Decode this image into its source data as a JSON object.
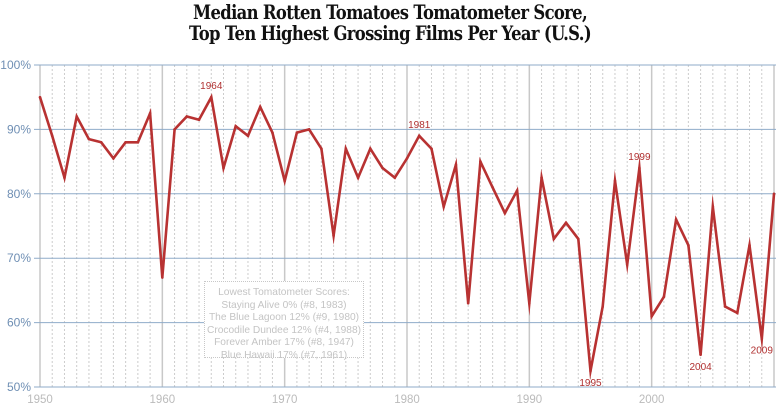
{
  "chart_data": {
    "type": "line",
    "title": "Median Rotten Tomatoes Tomatometer Score,",
    "subtitle": "Top Ten Highest Grossing Films Per Year (U.S.)",
    "xlabel": "",
    "ylabel": "",
    "xlim": [
      1950,
      2010
    ],
    "ylim": [
      50,
      100
    ],
    "grid": true,
    "y_ticks": [
      {
        "value": 50,
        "label": "50%"
      },
      {
        "value": 60,
        "label": "60%"
      },
      {
        "value": 70,
        "label": "70%"
      },
      {
        "value": 80,
        "label": "80%"
      },
      {
        "value": 90,
        "label": "90%"
      },
      {
        "value": 100,
        "label": "100%"
      }
    ],
    "x_ticks": [
      {
        "value": 1950,
        "label": "1950"
      },
      {
        "value": 1960,
        "label": "1960"
      },
      {
        "value": 1970,
        "label": "1970"
      },
      {
        "value": 1980,
        "label": "1980"
      },
      {
        "value": 1990,
        "label": "1990"
      },
      {
        "value": 2000,
        "label": "2000"
      }
    ],
    "series": [
      {
        "name": "Median Tomatometer Score",
        "color": "#b83232",
        "x": [
          1950,
          1951,
          1952,
          1953,
          1954,
          1955,
          1956,
          1957,
          1958,
          1959,
          1960,
          1961,
          1962,
          1963,
          1964,
          1965,
          1966,
          1967,
          1968,
          1969,
          1970,
          1971,
          1972,
          1973,
          1974,
          1975,
          1976,
          1977,
          1978,
          1979,
          1980,
          1981,
          1982,
          1983,
          1984,
          1985,
          1986,
          1987,
          1988,
          1989,
          1990,
          1991,
          1992,
          1993,
          1994,
          1995,
          1996,
          1997,
          1998,
          1999,
          2000,
          2001,
          2002,
          2003,
          2004,
          2005,
          2006,
          2007,
          2008,
          2009,
          2010
        ],
        "values": [
          95,
          89,
          82.5,
          92,
          88.5,
          88,
          85.5,
          88,
          88,
          92.5,
          67,
          90,
          92,
          91.5,
          95,
          84,
          90.5,
          89,
          93.5,
          89.5,
          82,
          89.5,
          90,
          87,
          73.5,
          87,
          82.5,
          87,
          84,
          82.5,
          85.5,
          89,
          87,
          78,
          84.5,
          63,
          85,
          81,
          77,
          80.5,
          63,
          82.5,
          73,
          75.5,
          73,
          52.5,
          62.5,
          82,
          69,
          84,
          61,
          64,
          76,
          72,
          55,
          78,
          62.5,
          61.5,
          72,
          57.5,
          80
        ]
      }
    ],
    "annotations": [
      {
        "x": 1964,
        "label": "1964",
        "position": "above"
      },
      {
        "x": 1981,
        "label": "1981",
        "position": "above"
      },
      {
        "x": 1999,
        "label": "1999",
        "position": "above"
      },
      {
        "x": 1995,
        "label": "1995",
        "position": "below"
      },
      {
        "x": 2004,
        "label": "2004",
        "position": "below"
      },
      {
        "x": 2009,
        "label": "2009",
        "position": "below"
      }
    ],
    "note": {
      "heading": "Lowest Tomatometer Scores:",
      "lines": [
        "Staying Alive 0% (#8, 1983)",
        "The Blue Lagoon 12% (#9, 1980)",
        "Crocodile Dundee 12% (#4, 1988)",
        "Forever Amber 17% (#8, 1947)",
        "Blue Hawaii 17% (#7, 1961)"
      ]
    },
    "colors": {
      "line": "#b83232",
      "major_grid": "#8fabc9",
      "minor_grid": "#cccccc",
      "decade_grid": "#c8c8c8"
    }
  }
}
